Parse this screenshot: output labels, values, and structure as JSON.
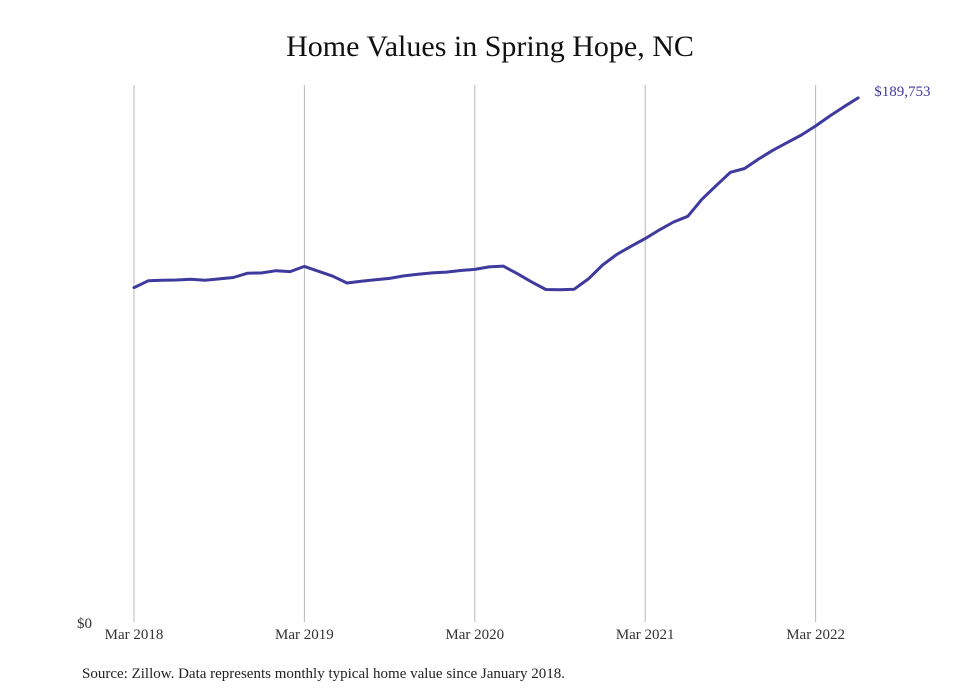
{
  "chart_data": {
    "type": "line",
    "title": "Home Values in Spring Hope, NC",
    "xlabel": "",
    "ylabel": "",
    "x_tick_labels": [
      "Mar 2018",
      "Mar 2019",
      "Mar 2020",
      "Mar 2021",
      "Mar 2022"
    ],
    "y_tick_labels": [
      "$0"
    ],
    "ylim": [
      0,
      200000
    ],
    "grid": "vertical",
    "line_color": "#3f3a9e",
    "end_label": "$189,753",
    "x_start": "2018-03",
    "series": [
      {
        "values": [
          120000,
          122500,
          122700,
          122800,
          123100,
          122700,
          123200,
          123700,
          125300,
          125400,
          126200,
          125900,
          127800,
          126000,
          124200,
          121700,
          122300,
          122900,
          123400,
          124300,
          124900,
          125400,
          125700,
          126300,
          126700,
          127600,
          127900,
          125100,
          122100,
          119300,
          119200,
          119400,
          123200,
          128300,
          132200,
          135200,
          138000,
          141200,
          144100,
          146200,
          152500,
          157500,
          162400,
          163800,
          167300,
          170500,
          173300,
          176100,
          179400,
          183100,
          186500,
          189753
        ]
      }
    ]
  },
  "source_note": "Source: Zillow. Data represents monthly typical home value since January 2018."
}
